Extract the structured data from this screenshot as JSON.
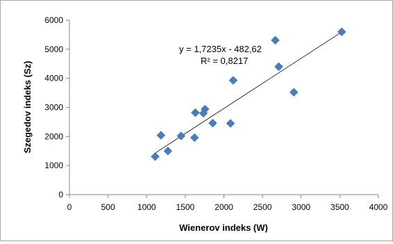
{
  "chart_data": {
    "type": "scatter",
    "xlabel": "Wienerov indeks (W)",
    "ylabel": "Szegedov indeks (Sz)",
    "xlim": [
      0,
      4000
    ],
    "ylim": [
      0,
      6000
    ],
    "xticks": [
      0,
      500,
      1000,
      1500,
      2000,
      2500,
      3000,
      3500,
      4000
    ],
    "yticks": [
      0,
      1000,
      2000,
      3000,
      4000,
      5000,
      6000
    ],
    "x_tick_labels": [
      "0",
      "500",
      "1000",
      "1500",
      "2000",
      "2500",
      "3000",
      "3500",
      "4000"
    ],
    "y_tick_labels": [
      "0",
      "1000",
      "2000",
      "3000",
      "4000",
      "5000",
      "6000"
    ],
    "grid": false,
    "marker": "diamond",
    "colors": {
      "points": "#4a7ebb",
      "trendline": "#000000",
      "axes": "#868686"
    },
    "points": [
      [
        1110,
        1310
      ],
      [
        1185,
        2040
      ],
      [
        1275,
        1500
      ],
      [
        1445,
        2020
      ],
      [
        1620,
        1960
      ],
      [
        1630,
        2820
      ],
      [
        1735,
        2800
      ],
      [
        1755,
        2940
      ],
      [
        1855,
        2460
      ],
      [
        2085,
        2450
      ],
      [
        2120,
        3930
      ],
      [
        2665,
        5310
      ],
      [
        2710,
        4400
      ],
      [
        2905,
        3520
      ],
      [
        3525,
        5600
      ]
    ],
    "trendline": {
      "slope": 1.7235,
      "intercept": -482.62,
      "x_range": [
        1110,
        3525
      ],
      "equation": "y = 1,7235x - 482,62",
      "r_squared": "R² = 0,8217"
    }
  }
}
